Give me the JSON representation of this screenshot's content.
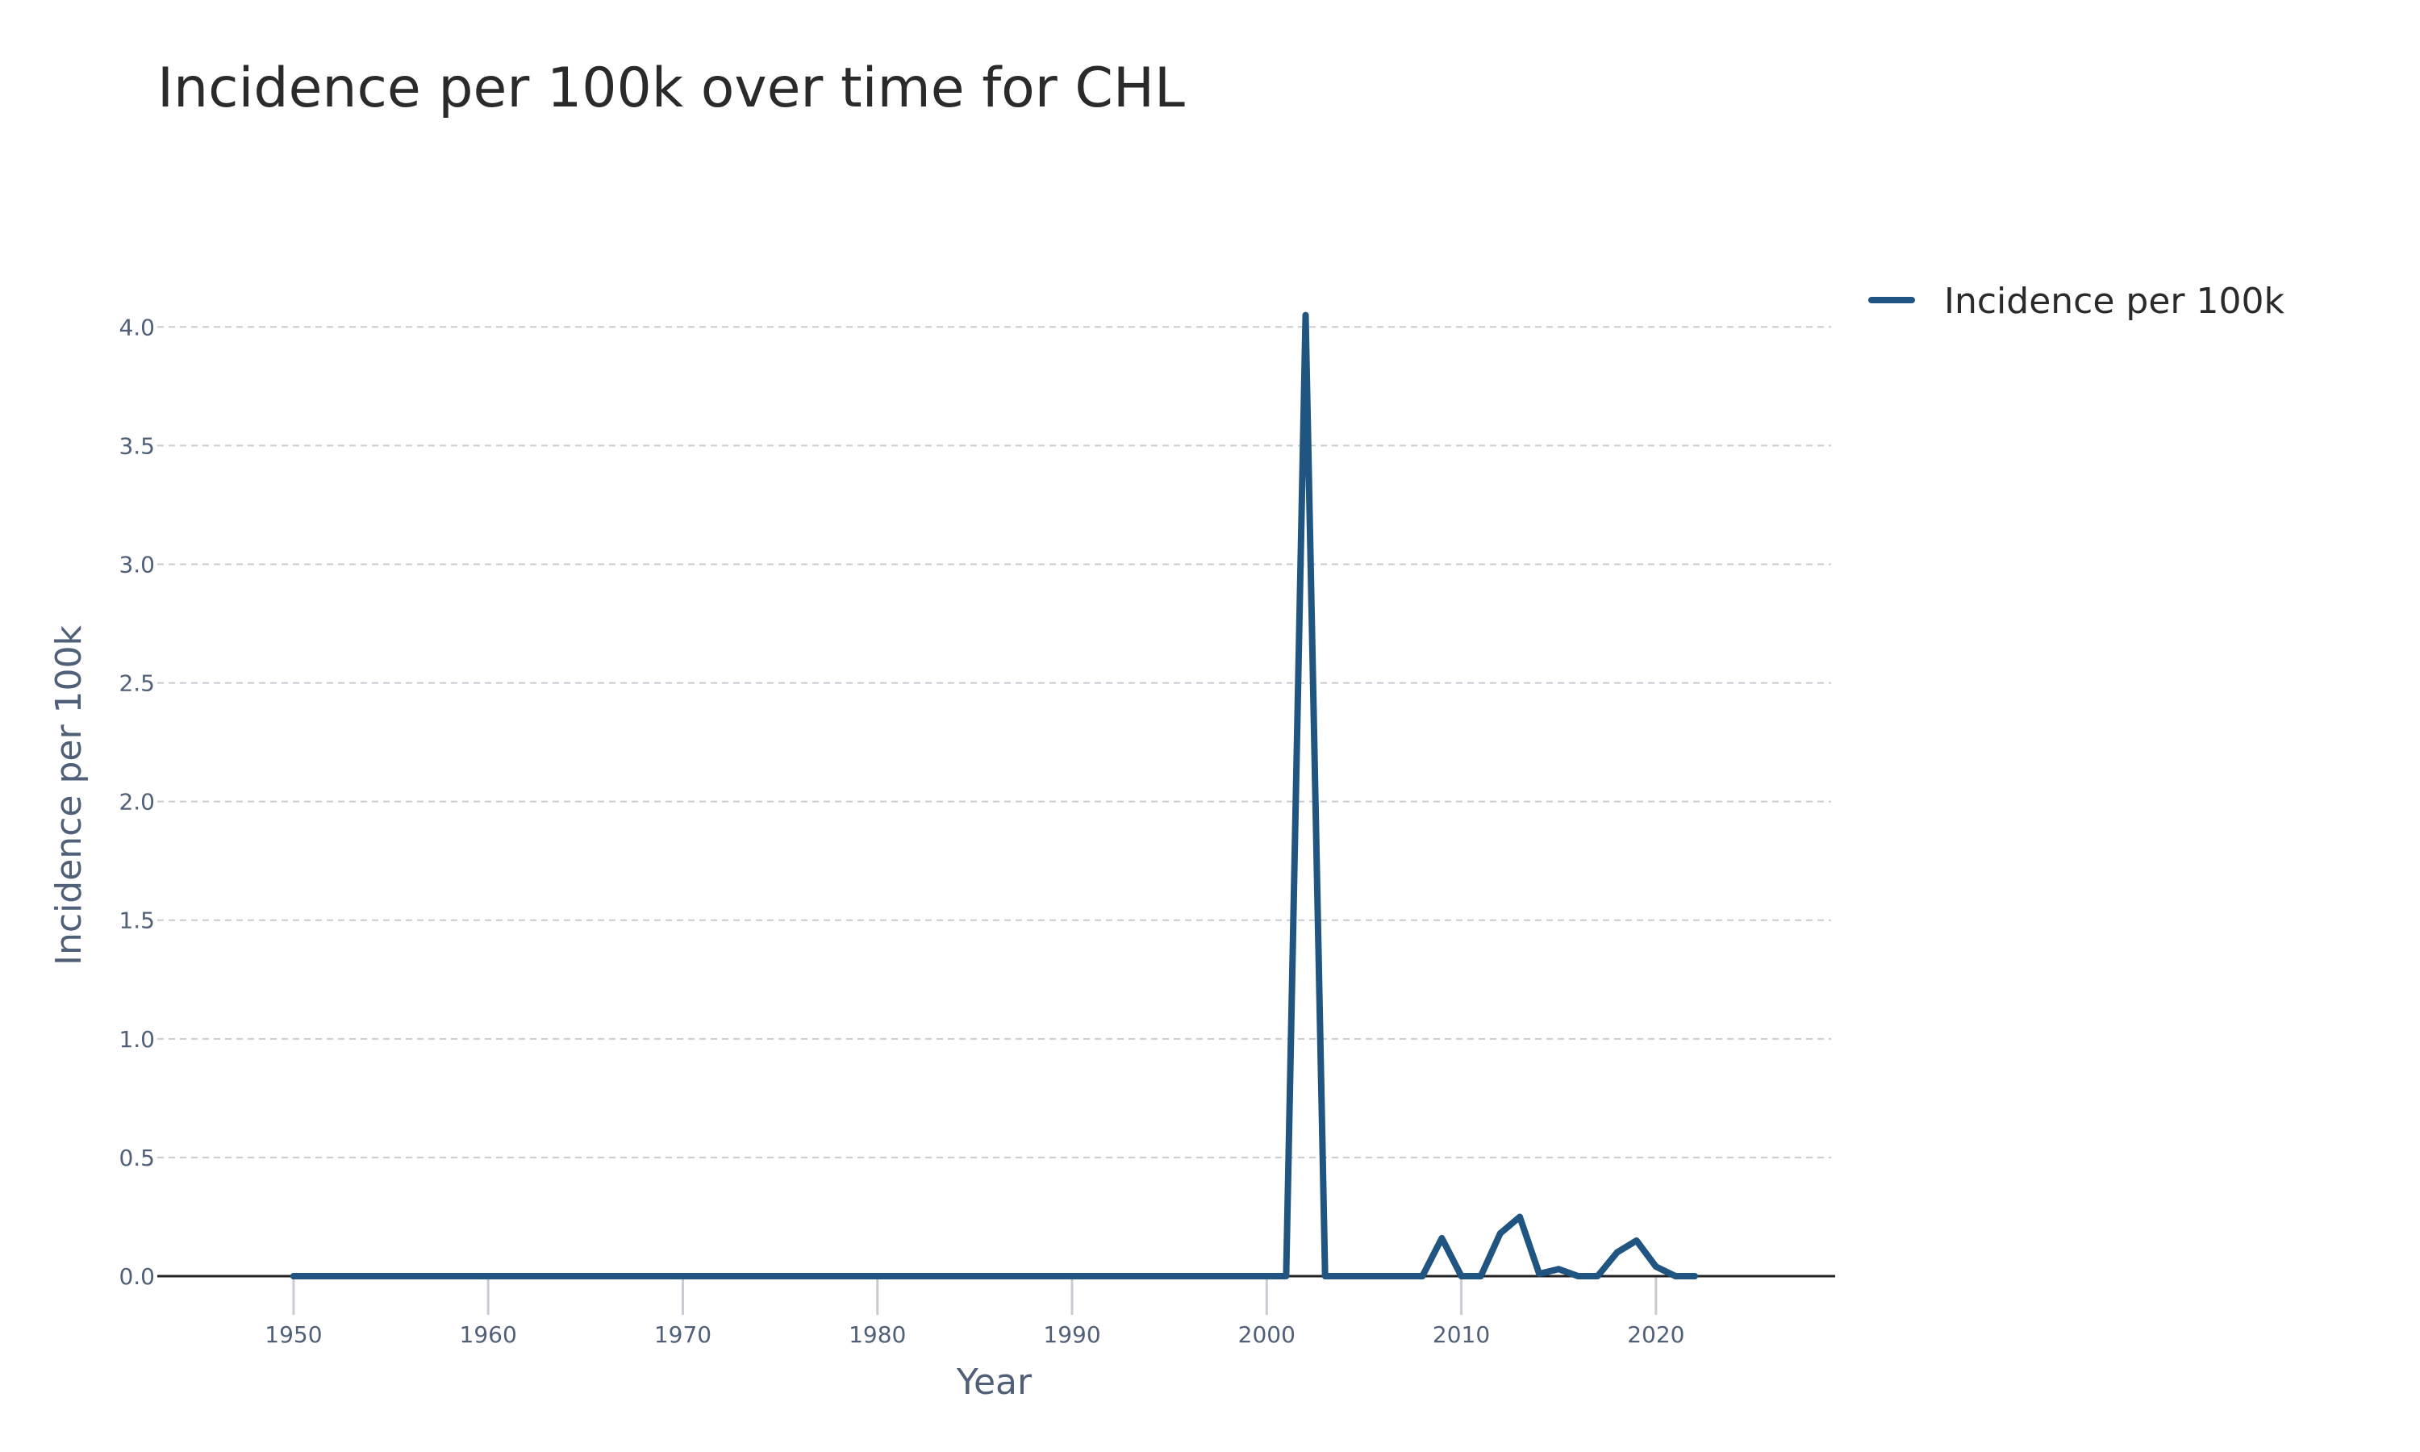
{
  "chart_data": {
    "type": "line",
    "title": "Incidence per 100k over time for CHL",
    "xlabel": "Year",
    "ylabel": "Incidence per 100k",
    "xlim": [
      1943,
      2029
    ],
    "ylim": [
      0,
      4.12
    ],
    "x_ticks": [
      1950,
      1960,
      1970,
      1980,
      1990,
      2000,
      2010,
      2020
    ],
    "y_ticks": [
      "0.0",
      "0.5",
      "1.0",
      "1.5",
      "2.0",
      "2.5",
      "3.0",
      "3.5",
      "4.0"
    ],
    "y_tick_values": [
      0,
      0.5,
      1,
      1.5,
      2,
      2.5,
      3,
      3.5,
      4
    ],
    "grid": true,
    "legend_position": "top-right",
    "series": [
      {
        "name": "Incidence per 100k",
        "color": "#1f5580",
        "x": [
          1950,
          2001,
          2002,
          2003,
          2008,
          2009,
          2010,
          2011,
          2012,
          2013,
          2014,
          2015,
          2016,
          2017,
          2018,
          2019,
          2020,
          2021,
          2022
        ],
        "y": [
          0,
          0,
          4.05,
          0,
          0,
          0.16,
          0,
          0,
          0.18,
          0.25,
          0.01,
          0.03,
          0,
          0,
          0.1,
          0.15,
          0.04,
          0,
          0
        ]
      }
    ]
  }
}
